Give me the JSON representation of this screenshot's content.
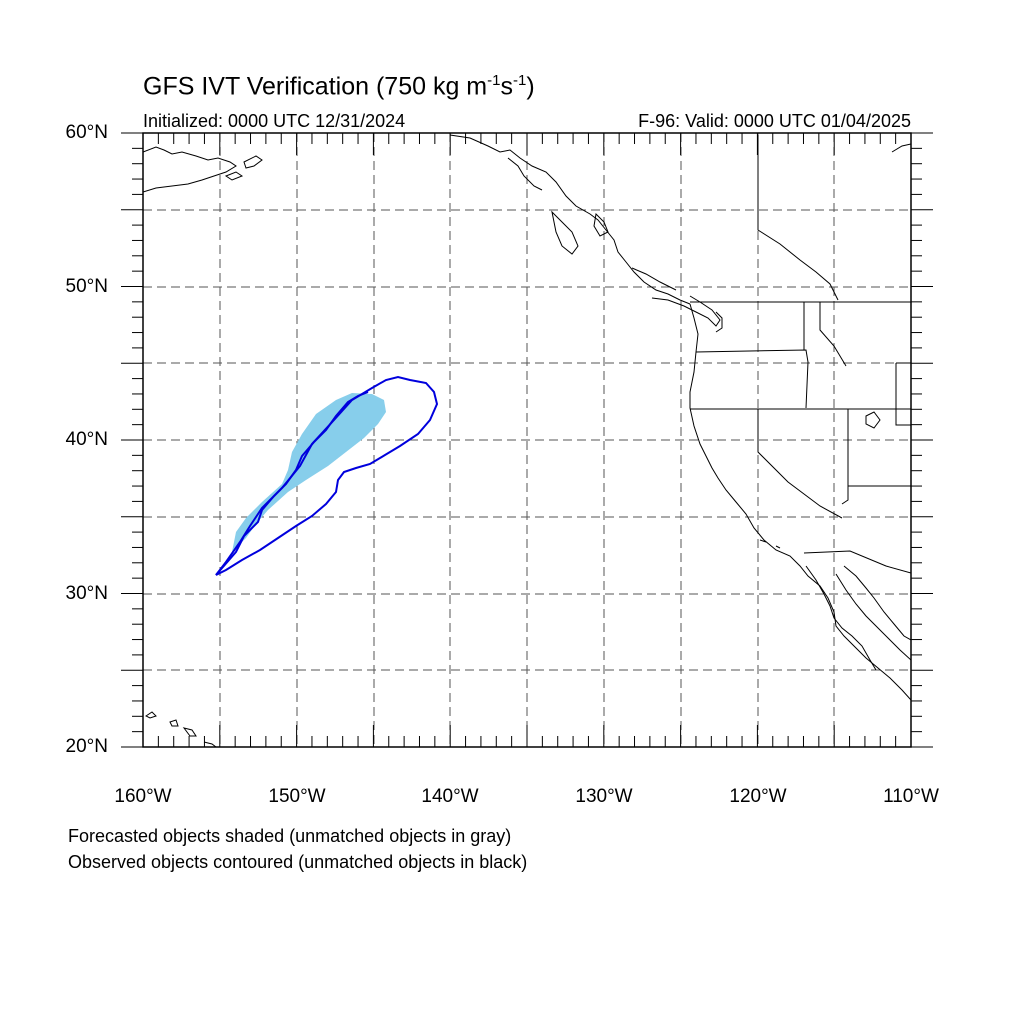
{
  "header": {
    "title_main": "GFS IVT Verification (750 kg m",
    "title_sup1": "-1",
    "title_mid": "s",
    "title_sup2": "-1",
    "title_end": ")",
    "initialized": "Initialized: 0000 UTC 12/31/2024",
    "valid": "F-96: Valid: 0000 UTC 01/04/2025"
  },
  "map": {
    "projection": "cylindrical equidistant",
    "lon_range": [
      -160,
      -110
    ],
    "lat_range": [
      20,
      60
    ],
    "grid_spacing_deg": 5,
    "grid_style": "dashed",
    "lat_labels": [
      "60°N",
      "50°N",
      "40°N",
      "30°N",
      "20°N"
    ],
    "lon_labels": [
      "160°W",
      "150°W",
      "140°W",
      "130°W",
      "120°W",
      "110°W"
    ],
    "forecast_object_color": "#87ceeb",
    "observed_object_color": "#0000dd",
    "coastline_color": "#000000"
  },
  "legend": {
    "line1": "Forecasted objects shaded (unmatched objects in gray)",
    "line2": "Observed objects contoured (unmatched objects in black)"
  }
}
